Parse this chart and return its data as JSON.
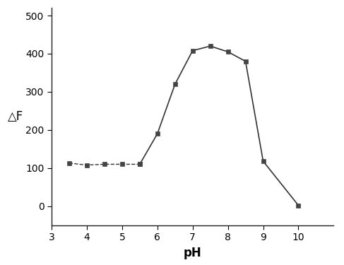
{
  "ph_values": [
    3.5,
    4.0,
    4.5,
    5.0,
    5.5,
    6.0,
    6.5,
    7.0,
    7.5,
    8.0,
    8.5,
    9.0,
    10.0
  ],
  "delta_f_values": [
    113,
    108,
    110,
    110,
    110,
    190,
    320,
    408,
    420,
    405,
    380,
    118,
    2
  ],
  "xlim": [
    3,
    11
  ],
  "ylim": [
    -50,
    520
  ],
  "xticks": [
    3,
    4,
    5,
    6,
    7,
    8,
    9,
    10
  ],
  "yticks": [
    0,
    100,
    200,
    300,
    400,
    500
  ],
  "xlabel": "pH",
  "ylabel": "△F",
  "line_color": "#333333",
  "marker_color": "#444444",
  "background_color": "#ffffff",
  "xlabel_fontsize": 12,
  "ylabel_fontsize": 12,
  "tick_fontsize": 10,
  "flat_segment_end_idx": 4,
  "rise_start_idx": 4
}
